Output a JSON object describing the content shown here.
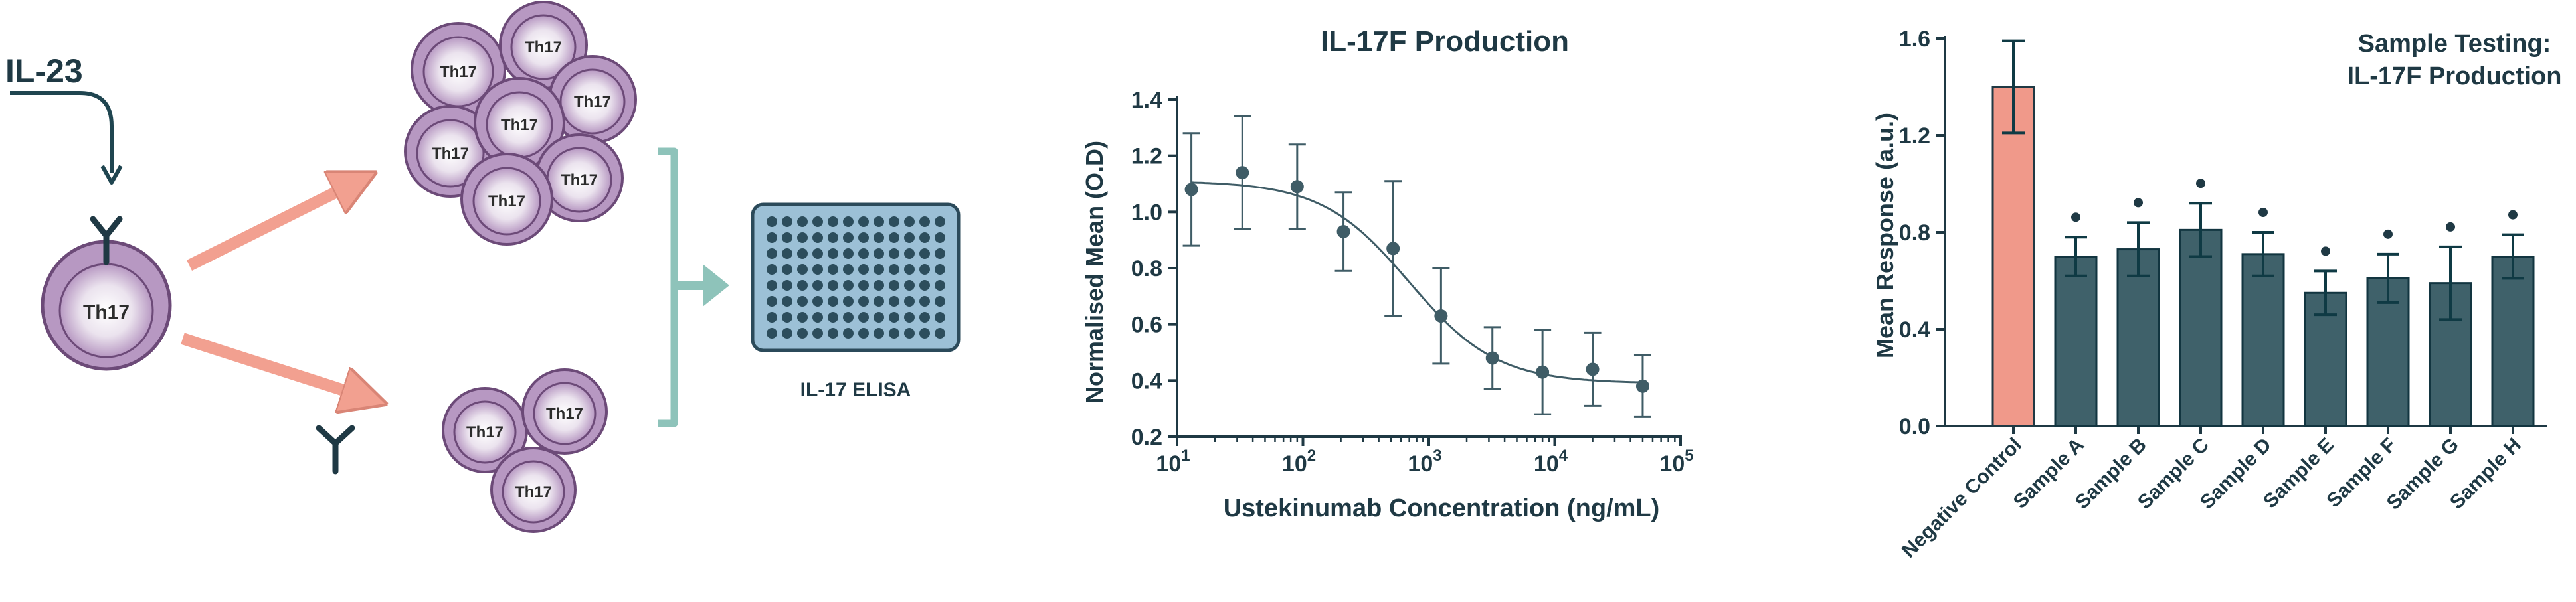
{
  "schematic": {
    "il23_label": "IL-23",
    "th17_label": "Th17",
    "elisa_label": "IL-17 ELISA"
  },
  "chart_data": [
    {
      "type": "scatter",
      "title": "IL-17F Production",
      "xlabel": "Ustekinumab Concentration (ng/mL)",
      "ylabel": "Normalised Mean (O.D)",
      "xscale": "log",
      "xlim": [
        10,
        100000
      ],
      "ylim": [
        0.2,
        1.4
      ],
      "x_ticks": [
        {
          "value": 10,
          "base": "10",
          "exp": "1"
        },
        {
          "value": 100,
          "base": "10",
          "exp": "2"
        },
        {
          "value": 1000,
          "base": "10",
          "exp": "3"
        },
        {
          "value": 10000,
          "base": "10",
          "exp": "4"
        },
        {
          "value": 100000,
          "base": "10",
          "exp": "5"
        }
      ],
      "y_ticks": [
        "0.2",
        "0.4",
        "0.6",
        "0.8",
        "1.0",
        "1.2",
        "1.4"
      ],
      "x": [
        13,
        33,
        90,
        210,
        520,
        1250,
        3200,
        8000,
        20000,
        50000
      ],
      "y": [
        1.08,
        1.14,
        1.09,
        0.93,
        0.87,
        0.63,
        0.48,
        0.43,
        0.44,
        0.38
      ],
      "err": [
        0.2,
        0.2,
        0.15,
        0.14,
        0.24,
        0.17,
        0.11,
        0.15,
        0.13,
        0.11
      ],
      "fit": {
        "top": 1.11,
        "bottom": 0.39,
        "ic50": 700,
        "hill": 1.25
      }
    },
    {
      "type": "bar",
      "title": "Sample Testing:",
      "title_line2": "IL-17F Production",
      "xlabel": "",
      "ylabel": "Mean Response (a.u.)",
      "ylim": [
        0,
        1.6
      ],
      "y_ticks": [
        "0.0",
        "0.4",
        "0.8",
        "1.2",
        "1.6"
      ],
      "categories": [
        "Negative Control",
        "Sample A",
        "Sample B",
        "Sample C",
        "Sample D",
        "Sample E",
        "Sample F",
        "Sample G",
        "Sample H"
      ],
      "values": [
        1.4,
        0.7,
        0.73,
        0.81,
        0.71,
        0.55,
        0.61,
        0.59,
        0.7
      ],
      "err": [
        0.19,
        0.08,
        0.11,
        0.11,
        0.09,
        0.09,
        0.1,
        0.15,
        0.09
      ],
      "significant": [
        false,
        true,
        true,
        true,
        true,
        true,
        true,
        true,
        true
      ],
      "colors": [
        "#f0998a",
        "#3f616a",
        "#3f616a",
        "#3f616a",
        "#3f616a",
        "#3f616a",
        "#3f616a",
        "#3f616a",
        "#3f616a"
      ]
    }
  ]
}
